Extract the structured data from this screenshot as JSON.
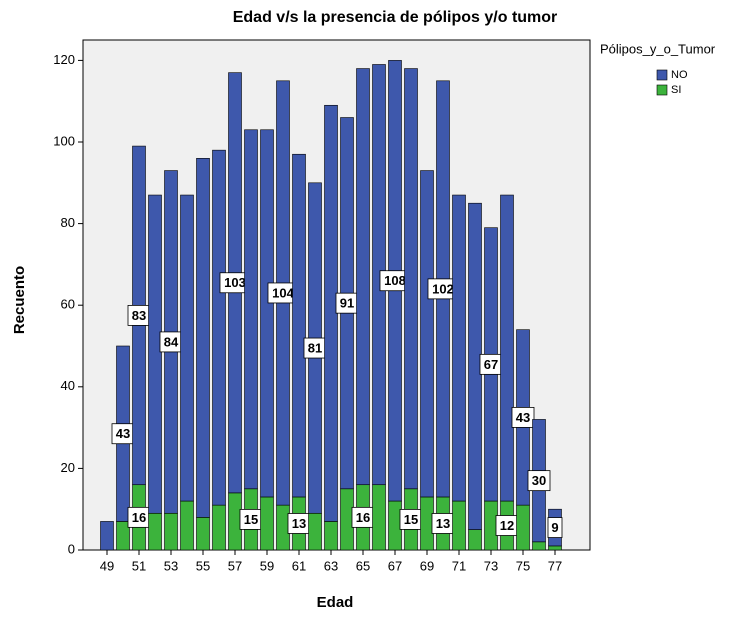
{
  "chart_data": {
    "type": "stacked_bar",
    "title": "Edad v/s la presencia de pólipos y/o tumor",
    "x_label": "Edad",
    "y_label": "Recuento",
    "legend_title": "Pólipos_y_o_Tumor",
    "legend_position": "right",
    "categories": [
      49,
      null,
      51,
      null,
      53,
      null,
      55,
      null,
      57,
      null,
      59,
      null,
      61,
      null,
      63,
      null,
      65,
      null,
      67,
      null,
      69,
      null,
      71,
      null,
      73,
      null,
      75,
      null,
      77
    ],
    "series": [
      {
        "name": "SI",
        "color": "#3cb33c",
        "values": [
          0,
          7,
          16,
          9,
          9,
          12,
          8,
          11,
          14,
          15,
          13,
          11,
          13,
          9,
          7,
          15,
          16,
          16,
          12,
          15,
          13,
          13,
          12,
          5,
          12,
          12,
          11,
          2,
          1
        ],
        "value_labels": [
          null,
          null,
          "16",
          null,
          null,
          null,
          null,
          null,
          null,
          "15",
          null,
          null,
          "13",
          null,
          null,
          null,
          "16",
          null,
          null,
          "15",
          null,
          "13",
          null,
          null,
          null,
          "12",
          null,
          null,
          null
        ]
      },
      {
        "name": "NO",
        "color": "#3e58ac",
        "values": [
          7,
          43,
          83,
          78,
          84,
          75,
          88,
          87,
          103,
          88,
          90,
          104,
          84,
          81,
          102,
          91,
          102,
          103,
          108,
          103,
          80,
          102,
          75,
          80,
          67,
          75,
          43,
          30,
          9
        ],
        "value_labels": [
          null,
          "43",
          "83",
          null,
          "84",
          null,
          null,
          null,
          "103",
          null,
          null,
          "104",
          null,
          "81",
          null,
          "91",
          null,
          null,
          "108",
          null,
          null,
          "102",
          null,
          null,
          "67",
          null,
          "43",
          "30",
          "9"
        ]
      }
    ],
    "ylim": [
      0,
      125
    ],
    "yticks": [
      0,
      20,
      40,
      60,
      80,
      100,
      120
    ]
  }
}
